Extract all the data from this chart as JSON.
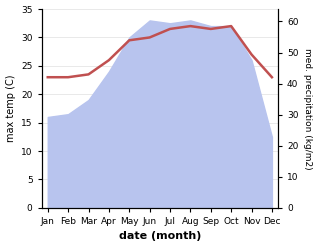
{
  "months": [
    "Jan",
    "Feb",
    "Mar",
    "Apr",
    "May",
    "Jun",
    "Jul",
    "Aug",
    "Sep",
    "Oct",
    "Nov",
    "Dec"
  ],
  "rainfall": [
    16,
    16.5,
    19,
    24,
    30,
    33,
    32.5,
    33,
    32,
    32,
    26,
    12.5
  ],
  "temperature": [
    23,
    23,
    23.5,
    26,
    29.5,
    30,
    31.5,
    32,
    31.5,
    32,
    27,
    23
  ],
  "ylim_left": [
    0,
    35
  ],
  "ylim_right": [
    0,
    64
  ],
  "yticks_left": [
    0,
    5,
    10,
    15,
    20,
    25,
    30,
    35
  ],
  "yticks_right": [
    0,
    10,
    20,
    30,
    40,
    50,
    60
  ],
  "xlabel": "date (month)",
  "ylabel_left": "max temp (C)",
  "ylabel_right": "med. precipitation (kg/m2)",
  "fill_color": "#b8c4ee",
  "line_color": "#c05050",
  "line_width": 1.8,
  "bg_color": "#ffffff"
}
